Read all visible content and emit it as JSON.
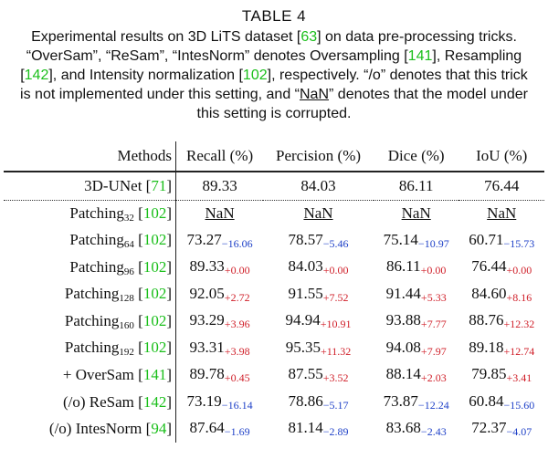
{
  "title": "TABLE 4",
  "caption": [
    "Experimental results on 3D LiTS dataset [",
    "63",
    "] on data pre-processing tricks. “OverSam”, “ReSam”, “IntesNorm” denotes Oversampling [",
    "141",
    "], Resampling [",
    "142",
    "], and Intensity normalization [",
    "102",
    "], respectively. “/o” denotes that this trick is not implemented under this setting, and “",
    "NaN",
    "” denotes that the model under this setting is corrupted."
  ],
  "table": {
    "header": [
      "Methods",
      "Recall (%)",
      "Percision (%)",
      "Dice (%)",
      "IoU (%)"
    ],
    "rows": [
      {
        "method": [
          "3D-UNet [",
          "71",
          "]"
        ],
        "cells": [
          {
            "value": "89.33"
          },
          {
            "value": "84.03"
          },
          {
            "value": "86.11"
          },
          {
            "value": "76.44"
          }
        ]
      },
      {
        "method": [
          "Patching",
          "32",
          " [",
          "102",
          "]"
        ],
        "cells": [
          {
            "value": "NaN"
          },
          {
            "value": "NaN"
          },
          {
            "value": "NaN"
          },
          {
            "value": "NaN"
          }
        ]
      },
      {
        "method": [
          "Patching",
          "64",
          " [",
          "102",
          "]"
        ],
        "cells": [
          {
            "value": "73.27",
            "delta": "−16.06"
          },
          {
            "value": "78.57",
            "delta": "−5.46"
          },
          {
            "value": "75.14",
            "delta": "−10.97"
          },
          {
            "value": "60.71",
            "delta": "−15.73"
          }
        ]
      },
      {
        "method": [
          "Patching",
          "96",
          " [",
          "102",
          "]"
        ],
        "cells": [
          {
            "value": "89.33",
            "delta": "+0.00"
          },
          {
            "value": "84.03",
            "delta": "+0.00"
          },
          {
            "value": "86.11",
            "delta": "+0.00"
          },
          {
            "value": "76.44",
            "delta": "+0.00"
          }
        ]
      },
      {
        "method": [
          "Patching",
          "128",
          " [",
          "102",
          "]"
        ],
        "cells": [
          {
            "value": "92.05",
            "delta": "+2.72"
          },
          {
            "value": "91.55",
            "delta": "+7.52"
          },
          {
            "value": "91.44",
            "delta": "+5.33"
          },
          {
            "value": "84.60",
            "delta": "+8.16"
          }
        ]
      },
      {
        "method": [
          "Patching",
          "160",
          " [",
          "102",
          "]"
        ],
        "cells": [
          {
            "value": "93.29",
            "delta": "+3.96"
          },
          {
            "value": "94.94",
            "delta": "+10.91"
          },
          {
            "value": "93.88",
            "delta": "+7.77"
          },
          {
            "value": "88.76",
            "delta": "+12.32"
          }
        ]
      },
      {
        "method": [
          "Patching",
          "192",
          " [",
          "102",
          "]"
        ],
        "cells": [
          {
            "value": "93.31",
            "delta": "+3.98"
          },
          {
            "value": "95.35",
            "delta": "+11.32"
          },
          {
            "value": "94.08",
            "delta": "+7.97"
          },
          {
            "value": "89.18",
            "delta": "+12.74"
          }
        ]
      },
      {
        "method": [
          "+ OverSam [",
          "141",
          "]"
        ],
        "cells": [
          {
            "value": "89.78",
            "delta": "+0.45"
          },
          {
            "value": "87.55",
            "delta": "+3.52"
          },
          {
            "value": "88.14",
            "delta": "+2.03"
          },
          {
            "value": "79.85",
            "delta": "+3.41"
          }
        ]
      },
      {
        "method": [
          "(/o) ReSam [",
          "142",
          "]"
        ],
        "cells": [
          {
            "value": "73.19",
            "delta": "−16.14"
          },
          {
            "value": "78.86",
            "delta": "−5.17"
          },
          {
            "value": "73.87",
            "delta": "−12.24"
          },
          {
            "value": "60.84",
            "delta": "−15.60"
          }
        ]
      },
      {
        "method": [
          "(/o) IntesNorm [",
          "94",
          "]"
        ],
        "cells": [
          {
            "value": "87.64",
            "delta": "−1.69"
          },
          {
            "value": "81.14",
            "delta": "−2.89"
          },
          {
            "value": "83.68",
            "delta": "−2.43"
          },
          {
            "value": "72.37",
            "delta": "−4.07"
          }
        ]
      }
    ]
  }
}
